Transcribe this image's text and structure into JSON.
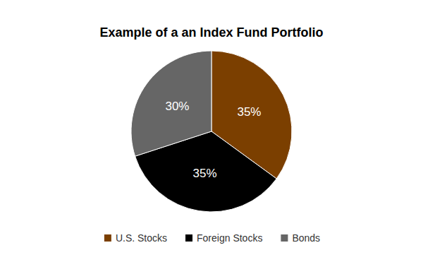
{
  "chart_data": {
    "type": "pie",
    "title": "Example of a an Index Fund Portfolio",
    "categories": [
      "U.S. Stocks",
      "Foreign Stocks",
      "Bonds"
    ],
    "values": [
      35,
      35,
      30
    ],
    "value_labels": [
      "35%",
      "35%",
      "30%"
    ],
    "colors": [
      "#7b3f00",
      "#000000",
      "#666666"
    ],
    "data_labels": true,
    "legend": "bottom"
  }
}
